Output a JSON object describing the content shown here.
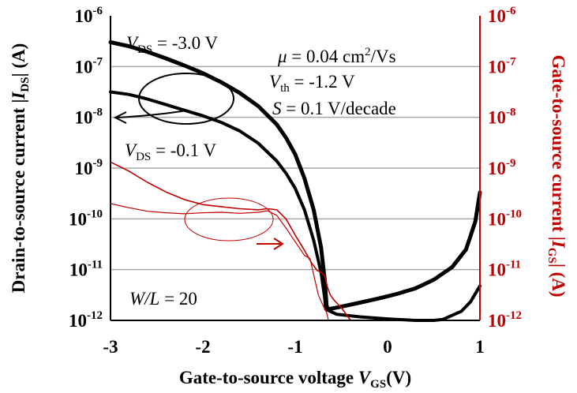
{
  "chart_data": {
    "type": "line",
    "xlabel": {
      "main": "Gate-to-source voltage ",
      "var": "V",
      "sub": "GS",
      "unit": "(V)"
    },
    "ylabel_left": {
      "main": "Drain-to-source current |",
      "var": "I",
      "sub": "DS",
      "unit": "| (A)"
    },
    "ylabel_right": {
      "main": "Gate-to-source current |",
      "var": "I",
      "sub": "GS",
      "unit": "| (A)"
    },
    "xlim": [
      -3,
      1
    ],
    "ylim_log10": [
      -12,
      -6
    ],
    "x_ticks": [
      {
        "value": -3,
        "label": "-3"
      },
      {
        "value": -2,
        "label": "-2"
      },
      {
        "value": -1,
        "label": "-1"
      },
      {
        "value": 0,
        "label": "0"
      },
      {
        "value": 1,
        "label": "1"
      }
    ],
    "y_ticks": [
      {
        "exp": -6,
        "base": "10",
        "sup": "-6"
      },
      {
        "exp": -7,
        "base": "10",
        "sup": "-7"
      },
      {
        "exp": -8,
        "base": "10",
        "sup": "-8"
      },
      {
        "exp": -9,
        "base": "10",
        "sup": "-9"
      },
      {
        "exp": -10,
        "base": "10",
        "sup": "-10"
      },
      {
        "exp": -11,
        "base": "10",
        "sup": "-11"
      },
      {
        "exp": -12,
        "base": "10",
        "sup": "-12"
      }
    ],
    "grid": "horizontal",
    "colors": {
      "ids": "#000000",
      "igs": "#c00000",
      "grid": "#a6a6a6"
    },
    "annotations": {
      "vds_high": {
        "var": "V",
        "sub": "DS",
        "rest": " = -3.0 V"
      },
      "vds_low": {
        "var": "V",
        "sub": "DS",
        "rest": " = -0.1 V"
      },
      "mu": {
        "var": "μ",
        "rest": "  = 0.04 cm",
        "sup": "2",
        "tail": "/Vs"
      },
      "vth": {
        "var": "V",
        "sub": "th",
        "rest": " = -1.2 V"
      },
      "ss": {
        "var": "S",
        "rest": " =  0.1 V/decade"
      },
      "wl": {
        "var": "W/L",
        "rest": " = 20"
      }
    },
    "series": [
      {
        "axis": "left",
        "points": [
          [
            -3,
            -6.52
          ],
          [
            -2.8,
            -6.6
          ],
          [
            -2.6,
            -6.71
          ],
          [
            -2.4,
            -6.84
          ],
          [
            -2.2,
            -6.98
          ],
          [
            -2,
            -7.13
          ],
          [
            -1.8,
            -7.31
          ],
          [
            -1.6,
            -7.52
          ],
          [
            -1.4,
            -7.78
          ],
          [
            -1.2,
            -8.14
          ],
          [
            -1.1,
            -8.4
          ],
          [
            -1,
            -8.73
          ],
          [
            -0.9,
            -9.2
          ],
          [
            -0.8,
            -9.82
          ],
          [
            -0.72,
            -10.57
          ],
          [
            -0.68,
            -11.2
          ],
          [
            -0.66,
            -11.72
          ],
          [
            -0.64,
            -11.78
          ],
          [
            -0.5,
            -11.73
          ],
          [
            -0.3,
            -11.65
          ],
          [
            -0.1,
            -11.57
          ],
          [
            0.1,
            -11.48
          ],
          [
            0.3,
            -11.37
          ],
          [
            0.5,
            -11.2
          ],
          [
            0.7,
            -10.95
          ],
          [
            0.85,
            -10.6
          ],
          [
            0.95,
            -10.05
          ],
          [
            1,
            -9.48
          ]
        ]
      },
      {
        "axis": "left",
        "points": [
          [
            -3,
            -7.5
          ],
          [
            -2.8,
            -7.55
          ],
          [
            -2.6,
            -7.64
          ],
          [
            -2.4,
            -7.75
          ],
          [
            -2.2,
            -7.86
          ],
          [
            -2,
            -7.97
          ],
          [
            -1.8,
            -8.1
          ],
          [
            -1.6,
            -8.27
          ],
          [
            -1.4,
            -8.51
          ],
          [
            -1.2,
            -8.86
          ],
          [
            -1.1,
            -9.1
          ],
          [
            -1,
            -9.4
          ],
          [
            -0.9,
            -9.82
          ],
          [
            -0.8,
            -10.42
          ],
          [
            -0.72,
            -11.06
          ],
          [
            -0.68,
            -11.56
          ],
          [
            -0.67,
            -11.78
          ],
          [
            -0.55,
            -11.88
          ],
          [
            -0.3,
            -11.93
          ],
          [
            0,
            -11.97
          ],
          [
            0.3,
            -12
          ],
          [
            0.5,
            -12
          ],
          [
            0.6,
            -11.98
          ],
          [
            0.8,
            -11.82
          ],
          [
            0.9,
            -11.63
          ],
          [
            1,
            -11.32
          ]
        ]
      },
      {
        "axis": "right",
        "points": [
          [
            -3,
            -8.88
          ],
          [
            -2.8,
            -9.06
          ],
          [
            -2.6,
            -9.28
          ],
          [
            -2.4,
            -9.47
          ],
          [
            -2.2,
            -9.62
          ],
          [
            -2,
            -9.72
          ],
          [
            -1.8,
            -9.76
          ],
          [
            -1.6,
            -9.8
          ],
          [
            -1.4,
            -9.82
          ],
          [
            -1.3,
            -9.8
          ],
          [
            -1.2,
            -9.82
          ],
          [
            -1.1,
            -10.0
          ],
          [
            -1,
            -10.32
          ],
          [
            -0.9,
            -10.62
          ],
          [
            -0.82,
            -10.88
          ],
          [
            -0.76,
            -11.02
          ],
          [
            -0.72,
            -11.05
          ],
          [
            -0.68,
            -11.12
          ],
          [
            -0.65,
            -11.35
          ],
          [
            -0.62,
            -11.5
          ],
          [
            -0.58,
            -11.6
          ],
          [
            -0.5,
            -11.75
          ],
          [
            -0.44,
            -11.9
          ],
          [
            -0.4,
            -12
          ]
        ]
      },
      {
        "axis": "right",
        "points": [
          [
            -3,
            -9.7
          ],
          [
            -2.8,
            -9.78
          ],
          [
            -2.6,
            -9.85
          ],
          [
            -2.4,
            -9.88
          ],
          [
            -2.2,
            -9.9
          ],
          [
            -2,
            -9.88
          ],
          [
            -1.8,
            -9.87
          ],
          [
            -1.6,
            -9.89
          ],
          [
            -1.4,
            -9.87
          ],
          [
            -1.3,
            -9.84
          ],
          [
            -1.2,
            -9.93
          ],
          [
            -1.1,
            -10.18
          ],
          [
            -1,
            -10.45
          ],
          [
            -0.9,
            -10.72
          ],
          [
            -0.84,
            -10.78
          ],
          [
            -0.8,
            -11.1
          ],
          [
            -0.75,
            -11.5
          ],
          [
            -0.7,
            -11.7
          ],
          [
            -0.66,
            -11.85
          ],
          [
            -0.64,
            -12
          ]
        ]
      }
    ]
  }
}
